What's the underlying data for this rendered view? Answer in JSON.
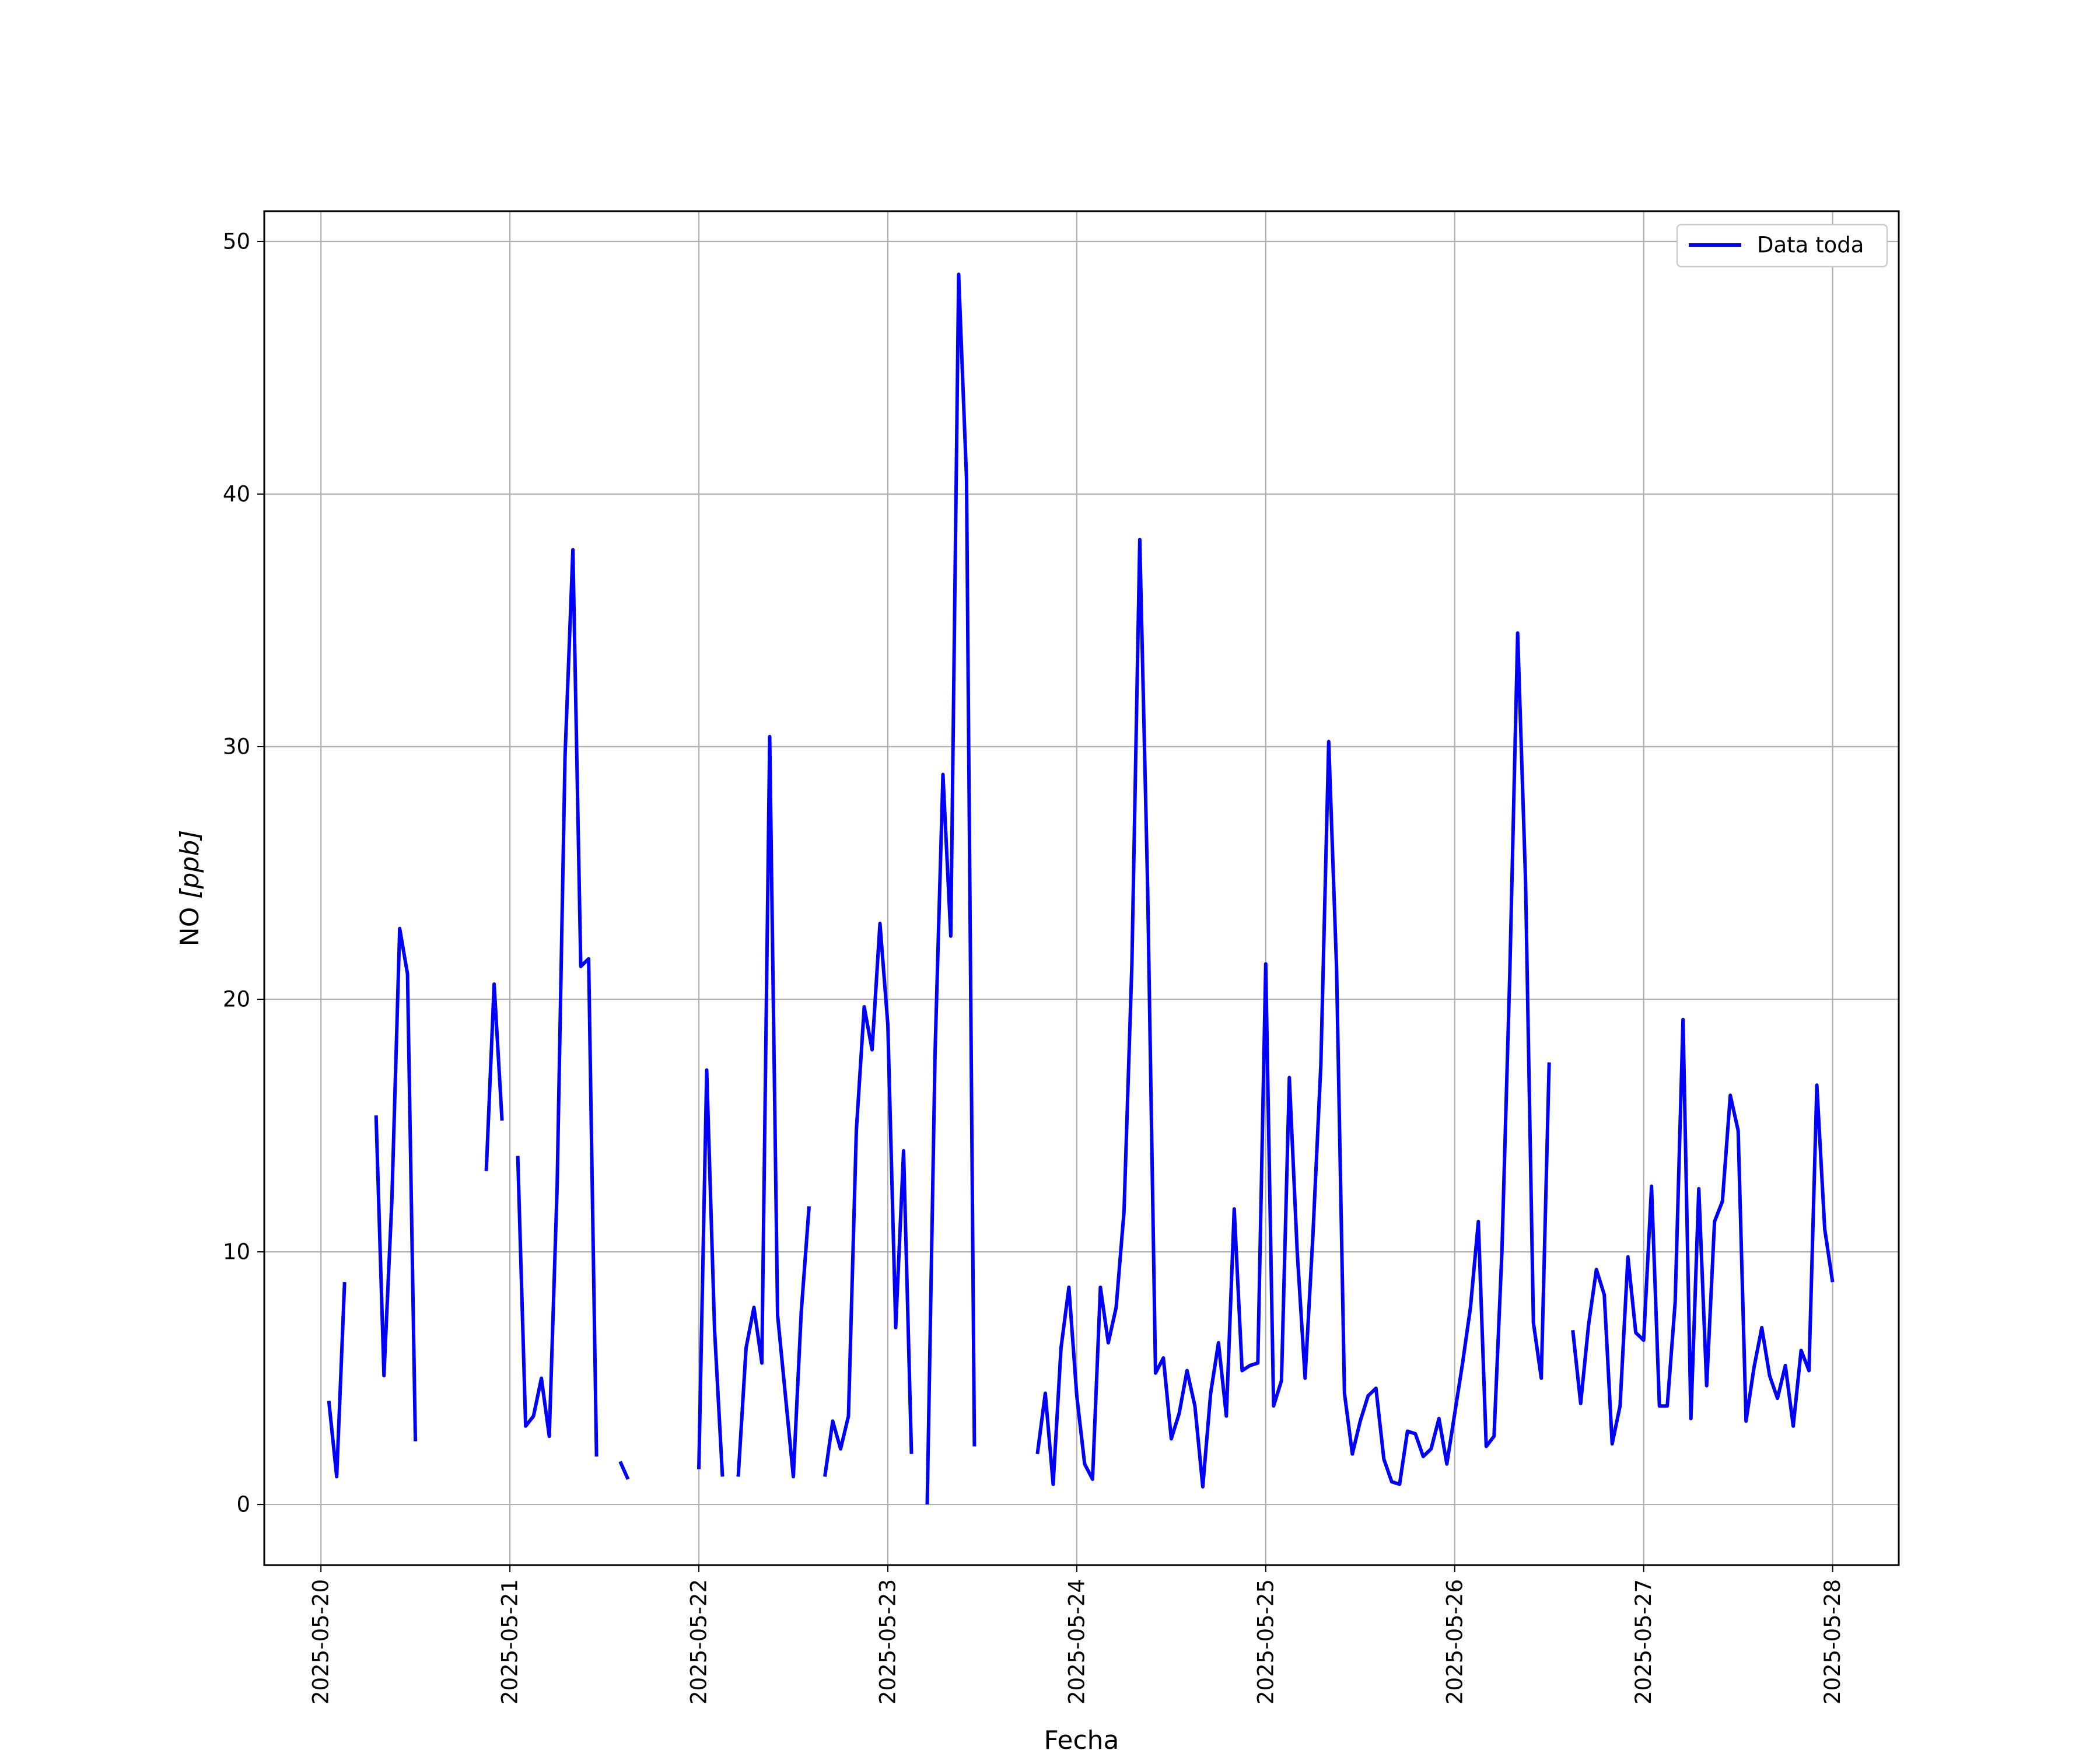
{
  "chart_data": {
    "type": "line",
    "xlabel": "Fecha",
    "ylabel_prefix": "NO ",
    "ylabel_unit": "[ppb]",
    "x_ticks": [
      "2025-05-20",
      "2025-05-21",
      "2025-05-22",
      "2025-05-23",
      "2025-05-24",
      "2025-05-25",
      "2025-05-26",
      "2025-05-27",
      "2025-05-28"
    ],
    "y_ticks": [
      0,
      10,
      20,
      30,
      40,
      50
    ],
    "xlim": [
      "2025-05-19 16:48",
      "2025-05-28 08:24"
    ],
    "ylim": [
      -2.4,
      51.2
    ],
    "grid": true,
    "legend_position": "upper right",
    "series": [
      {
        "name": "Data toda",
        "color": "#0000ff",
        "segments": [
          [
            [
              "2025-05-20 01:00",
              4.1
            ],
            [
              "2025-05-20 02:00",
              1.1
            ],
            [
              "2025-05-20 03:00",
              8.8
            ]
          ],
          [
            [
              "2025-05-20 07:00",
              15.4
            ],
            [
              "2025-05-20 08:00",
              5.1
            ],
            [
              "2025-05-20 09:00",
              12.0
            ],
            [
              "2025-05-20 10:00",
              22.8
            ],
            [
              "2025-05-20 11:00",
              21.0
            ],
            [
              "2025-05-20 12:00",
              2.5
            ]
          ],
          [
            [
              "2025-05-20 21:00",
              13.2
            ],
            [
              "2025-05-20 22:00",
              20.6
            ],
            [
              "2025-05-20 23:00",
              15.2
            ]
          ],
          [
            [
              "2025-05-21 01:00",
              13.8
            ],
            [
              "2025-05-21 02:00",
              3.1
            ],
            [
              "2025-05-21 03:00",
              3.5
            ],
            [
              "2025-05-21 04:00",
              5.0
            ],
            [
              "2025-05-21 05:00",
              2.7
            ],
            [
              "2025-05-21 06:00",
              12.6
            ],
            [
              "2025-05-21 07:00",
              29.6
            ],
            [
              "2025-05-21 08:00",
              37.8
            ],
            [
              "2025-05-21 09:00",
              21.3
            ],
            [
              "2025-05-21 10:00",
              21.6
            ],
            [
              "2025-05-21 11:00",
              1.9
            ]
          ],
          [
            [
              "2025-05-21 14:00",
              1.7
            ],
            [
              "2025-05-21 15:00",
              1.0
            ]
          ],
          [
            [
              "2025-05-22 00:00",
              1.4
            ],
            [
              "2025-05-22 01:00",
              17.2
            ],
            [
              "2025-05-22 02:00",
              6.9
            ],
            [
              "2025-05-22 03:00",
              1.1
            ]
          ],
          [
            [
              "2025-05-22 05:00",
              1.1
            ],
            [
              "2025-05-22 06:00",
              6.2
            ],
            [
              "2025-05-22 07:00",
              7.8
            ],
            [
              "2025-05-22 08:00",
              5.6
            ],
            [
              "2025-05-22 09:00",
              30.4
            ],
            [
              "2025-05-22 10:00",
              7.5
            ],
            [
              "2025-05-22 11:00",
              4.3
            ],
            [
              "2025-05-22 12:00",
              1.1
            ],
            [
              "2025-05-22 13:00",
              7.6
            ],
            [
              "2025-05-22 14:00",
              11.8
            ]
          ],
          [
            [
              "2025-05-22 16:00",
              1.1
            ],
            [
              "2025-05-22 17:00",
              3.3
            ],
            [
              "2025-05-22 18:00",
              2.2
            ],
            [
              "2025-05-22 19:00",
              3.5
            ],
            [
              "2025-05-22 20:00",
              14.8
            ],
            [
              "2025-05-22 21:00",
              19.7
            ],
            [
              "2025-05-22 22:00",
              18.0
            ],
            [
              "2025-05-22 23:00",
              23.0
            ],
            [
              "2025-05-23 00:00",
              19.0
            ],
            [
              "2025-05-23 01:00",
              7.0
            ],
            [
              "2025-05-23 02:00",
              14.0
            ],
            [
              "2025-05-23 03:00",
              2.0
            ]
          ],
          [
            [
              "2025-05-23 05:00",
              0.0
            ],
            [
              "2025-05-23 06:00",
              17.9
            ],
            [
              "2025-05-23 07:00",
              28.9
            ],
            [
              "2025-05-23 08:00",
              22.5
            ],
            [
              "2025-05-23 09:00",
              48.7
            ],
            [
              "2025-05-23 10:00",
              40.6
            ],
            [
              "2025-05-23 11:00",
              2.3
            ]
          ],
          [
            [
              "2025-05-23 19:00",
              2.0
            ],
            [
              "2025-05-23 20:00",
              4.4
            ],
            [
              "2025-05-23 21:00",
              0.8
            ],
            [
              "2025-05-23 22:00",
              6.2
            ],
            [
              "2025-05-23 23:00",
              8.6
            ],
            [
              "2025-05-24 00:00",
              4.3
            ],
            [
              "2025-05-24 01:00",
              1.6
            ],
            [
              "2025-05-24 02:00",
              1.0
            ],
            [
              "2025-05-24 03:00",
              8.6
            ],
            [
              "2025-05-24 04:00",
              6.4
            ],
            [
              "2025-05-24 05:00",
              7.8
            ],
            [
              "2025-05-24 06:00",
              11.6
            ],
            [
              "2025-05-24 07:00",
              21.4
            ],
            [
              "2025-05-24 08:00",
              38.2
            ],
            [
              "2025-05-24 09:00",
              24.4
            ],
            [
              "2025-05-24 10:00",
              5.2
            ],
            [
              "2025-05-24 11:00",
              5.8
            ],
            [
              "2025-05-24 12:00",
              2.6
            ],
            [
              "2025-05-24 13:00",
              3.6
            ],
            [
              "2025-05-24 14:00",
              5.3
            ],
            [
              "2025-05-24 15:00",
              3.9
            ],
            [
              "2025-05-24 16:00",
              0.7
            ],
            [
              "2025-05-24 17:00",
              4.4
            ],
            [
              "2025-05-24 18:00",
              6.4
            ],
            [
              "2025-05-24 19:00",
              3.5
            ],
            [
              "2025-05-24 20:00",
              11.7
            ],
            [
              "2025-05-24 21:00",
              5.3
            ],
            [
              "2025-05-24 22:00",
              5.5
            ],
            [
              "2025-05-24 23:00",
              5.6
            ],
            [
              "2025-05-25 00:00",
              21.4
            ],
            [
              "2025-05-25 01:00",
              3.9
            ],
            [
              "2025-05-25 02:00",
              4.9
            ],
            [
              "2025-05-25 03:00",
              16.9
            ],
            [
              "2025-05-25 04:00",
              10.0
            ],
            [
              "2025-05-25 05:00",
              5.0
            ],
            [
              "2025-05-25 06:00",
              10.7
            ],
            [
              "2025-05-25 07:00",
              17.4
            ],
            [
              "2025-05-25 08:00",
              30.2
            ],
            [
              "2025-05-25 09:00",
              21.2
            ],
            [
              "2025-05-25 10:00",
              4.4
            ],
            [
              "2025-05-25 11:00",
              2.0
            ],
            [
              "2025-05-25 12:00",
              3.3
            ],
            [
              "2025-05-25 13:00",
              4.3
            ],
            [
              "2025-05-25 14:00",
              4.6
            ],
            [
              "2025-05-25 15:00",
              1.8
            ],
            [
              "2025-05-25 16:00",
              0.9
            ],
            [
              "2025-05-25 17:00",
              0.8
            ],
            [
              "2025-05-25 18:00",
              2.9
            ],
            [
              "2025-05-25 19:00",
              2.8
            ],
            [
              "2025-05-25 20:00",
              1.9
            ],
            [
              "2025-05-25 21:00",
              2.2
            ],
            [
              "2025-05-25 22:00",
              3.4
            ],
            [
              "2025-05-25 23:00",
              1.6
            ],
            [
              "2025-05-26 00:00",
              3.6
            ],
            [
              "2025-05-26 01:00",
              5.6
            ],
            [
              "2025-05-26 02:00",
              7.8
            ],
            [
              "2025-05-26 03:00",
              11.2
            ],
            [
              "2025-05-26 04:00",
              2.3
            ],
            [
              "2025-05-26 05:00",
              2.7
            ],
            [
              "2025-05-26 06:00",
              10.0
            ],
            [
              "2025-05-26 07:00",
              21.0
            ],
            [
              "2025-05-26 08:00",
              34.5
            ],
            [
              "2025-05-26 09:00",
              24.7
            ],
            [
              "2025-05-26 10:00",
              7.2
            ],
            [
              "2025-05-26 11:00",
              5.0
            ],
            [
              "2025-05-26 12:00",
              17.5
            ]
          ],
          [
            [
              "2025-05-26 15:00",
              6.9
            ],
            [
              "2025-05-26 16:00",
              4.0
            ],
            [
              "2025-05-26 17:00",
              7.1
            ],
            [
              "2025-05-26 18:00",
              9.3
            ],
            [
              "2025-05-26 19:00",
              8.3
            ],
            [
              "2025-05-26 20:00",
              2.4
            ],
            [
              "2025-05-26 21:00",
              3.9
            ],
            [
              "2025-05-26 22:00",
              9.8
            ],
            [
              "2025-05-26 23:00",
              6.8
            ],
            [
              "2025-05-27 00:00",
              6.5
            ],
            [
              "2025-05-27 01:00",
              12.6
            ],
            [
              "2025-05-27 02:00",
              3.9
            ],
            [
              "2025-05-27 03:00",
              3.9
            ],
            [
              "2025-05-27 04:00",
              8.0
            ],
            [
              "2025-05-27 05:00",
              19.2
            ],
            [
              "2025-05-27 06:00",
              3.4
            ],
            [
              "2025-05-27 07:00",
              12.5
            ],
            [
              "2025-05-27 08:00",
              4.7
            ],
            [
              "2025-05-27 09:00",
              11.2
            ],
            [
              "2025-05-27 10:00",
              12.0
            ],
            [
              "2025-05-27 11:00",
              16.2
            ],
            [
              "2025-05-27 12:00",
              14.8
            ],
            [
              "2025-05-27 13:00",
              3.3
            ],
            [
              "2025-05-27 14:00",
              5.4
            ],
            [
              "2025-05-27 15:00",
              7.0
            ],
            [
              "2025-05-27 16:00",
              5.1
            ],
            [
              "2025-05-27 17:00",
              4.2
            ],
            [
              "2025-05-27 18:00",
              5.5
            ],
            [
              "2025-05-27 19:00",
              3.1
            ],
            [
              "2025-05-27 20:00",
              6.1
            ],
            [
              "2025-05-27 21:00",
              5.3
            ],
            [
              "2025-05-27 22:00",
              16.6
            ],
            [
              "2025-05-27 23:00",
              10.9
            ],
            [
              "2025-05-28 00:00",
              8.8
            ]
          ]
        ]
      }
    ]
  }
}
